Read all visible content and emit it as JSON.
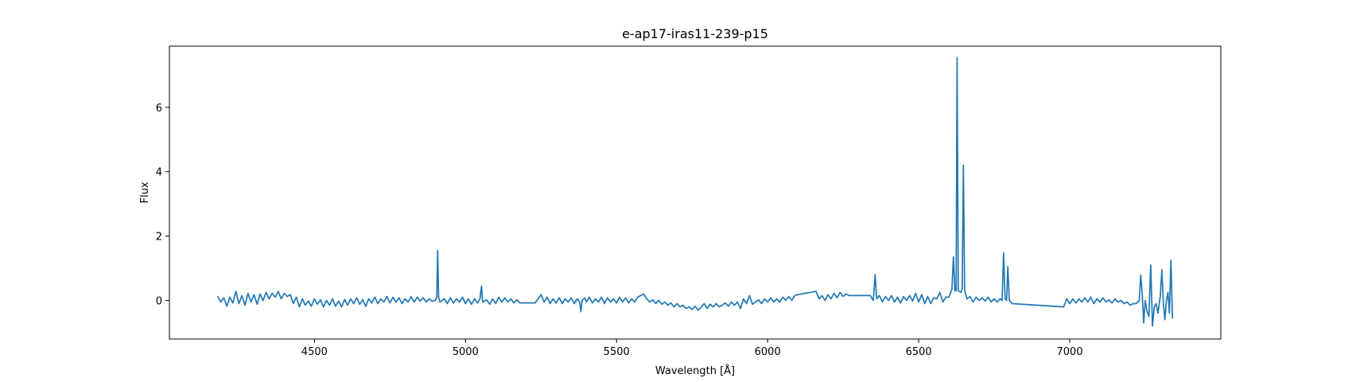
{
  "chart_data": {
    "type": "line",
    "title": "e-ap17-iras11-239-p15",
    "xlabel": "Wavelength [Å]",
    "ylabel": "Flux",
    "xlim": [
      4020,
      7500
    ],
    "ylim": [
      -1.2,
      7.9
    ],
    "xticks": [
      4500,
      5000,
      5500,
      6000,
      6500,
      7000
    ],
    "yticks": [
      0,
      2,
      4,
      6
    ],
    "grid": false,
    "legend": "none",
    "line_color": "#1f77b4",
    "series": [
      {
        "values": [
          [
            4180,
            0.12
          ],
          [
            4190,
            -0.05
          ],
          [
            4200,
            0.08
          ],
          [
            4210,
            -0.18
          ],
          [
            4220,
            0.1
          ],
          [
            4230,
            -0.08
          ],
          [
            4240,
            0.28
          ],
          [
            4250,
            -0.1
          ],
          [
            4260,
            0.15
          ],
          [
            4270,
            -0.15
          ],
          [
            4280,
            0.22
          ],
          [
            4290,
            -0.05
          ],
          [
            4300,
            0.18
          ],
          [
            4310,
            -0.12
          ],
          [
            4320,
            0.2
          ],
          [
            4330,
            0.0
          ],
          [
            4340,
            0.25
          ],
          [
            4350,
            0.05
          ],
          [
            4360,
            0.22
          ],
          [
            4370,
            0.1
          ],
          [
            4380,
            0.28
          ],
          [
            4390,
            0.05
          ],
          [
            4400,
            0.22
          ],
          [
            4410,
            0.12
          ],
          [
            4420,
            0.18
          ],
          [
            4430,
            -0.1
          ],
          [
            4440,
            0.1
          ],
          [
            4450,
            -0.2
          ],
          [
            4460,
            0.05
          ],
          [
            4470,
            -0.15
          ],
          [
            4480,
            -0.02
          ],
          [
            4490,
            -0.18
          ],
          [
            4500,
            0.05
          ],
          [
            4510,
            -0.12
          ],
          [
            4520,
            0.02
          ],
          [
            4530,
            -0.2
          ],
          [
            4540,
            0.0
          ],
          [
            4550,
            -0.15
          ],
          [
            4560,
            0.05
          ],
          [
            4570,
            -0.18
          ],
          [
            4580,
            -0.02
          ],
          [
            4590,
            -0.2
          ],
          [
            4600,
            0.03
          ],
          [
            4610,
            -0.15
          ],
          [
            4620,
            0.05
          ],
          [
            4630,
            -0.1
          ],
          [
            4640,
            0.08
          ],
          [
            4650,
            -0.12
          ],
          [
            4660,
            0.02
          ],
          [
            4670,
            -0.18
          ],
          [
            4680,
            0.05
          ],
          [
            4690,
            -0.08
          ],
          [
            4700,
            0.1
          ],
          [
            4710,
            -0.1
          ],
          [
            4720,
            0.05
          ],
          [
            4730,
            -0.05
          ],
          [
            4740,
            0.12
          ],
          [
            4750,
            -0.08
          ],
          [
            4760,
            0.1
          ],
          [
            4770,
            -0.05
          ],
          [
            4780,
            0.08
          ],
          [
            4790,
            -0.1
          ],
          [
            4800,
            0.05
          ],
          [
            4810,
            -0.05
          ],
          [
            4820,
            0.12
          ],
          [
            4830,
            -0.05
          ],
          [
            4840,
            0.1
          ],
          [
            4850,
            -0.02
          ],
          [
            4860,
            0.08
          ],
          [
            4870,
            -0.05
          ],
          [
            4880,
            0.05
          ],
          [
            4890,
            -0.03
          ],
          [
            4900,
            0.0
          ],
          [
            4905,
            0.1
          ],
          [
            4908,
            1.55
          ],
          [
            4911,
            0.1
          ],
          [
            4915,
            -0.05
          ],
          [
            4930,
            0.05
          ],
          [
            4940,
            -0.1
          ],
          [
            4950,
            0.08
          ],
          [
            4960,
            -0.08
          ],
          [
            4970,
            0.05
          ],
          [
            4980,
            -0.05
          ],
          [
            4990,
            0.1
          ],
          [
            5000,
            -0.1
          ],
          [
            5010,
            0.05
          ],
          [
            5020,
            -0.12
          ],
          [
            5030,
            0.05
          ],
          [
            5040,
            -0.08
          ],
          [
            5048,
            0.05
          ],
          [
            5053,
            0.45
          ],
          [
            5057,
            -0.05
          ],
          [
            5070,
            0.02
          ],
          [
            5080,
            -0.12
          ],
          [
            5090,
            0.05
          ],
          [
            5100,
            -0.1
          ],
          [
            5110,
            0.1
          ],
          [
            5120,
            -0.05
          ],
          [
            5130,
            0.08
          ],
          [
            5140,
            -0.05
          ],
          [
            5150,
            0.05
          ],
          [
            5160,
            -0.08
          ],
          [
            5170,
            0.02
          ],
          [
            5180,
            -0.08
          ],
          [
            5190,
            -0.08
          ],
          [
            5230,
            -0.08
          ],
          [
            5240,
            0.05
          ],
          [
            5250,
            0.18
          ],
          [
            5260,
            -0.05
          ],
          [
            5270,
            0.1
          ],
          [
            5280,
            -0.1
          ],
          [
            5290,
            0.05
          ],
          [
            5300,
            -0.08
          ],
          [
            5310,
            0.08
          ],
          [
            5320,
            -0.1
          ],
          [
            5330,
            0.05
          ],
          [
            5340,
            -0.05
          ],
          [
            5350,
            0.08
          ],
          [
            5360,
            -0.1
          ],
          [
            5370,
            0.05
          ],
          [
            5378,
            -0.05
          ],
          [
            5382,
            -0.35
          ],
          [
            5386,
            0.0
          ],
          [
            5395,
            0.08
          ],
          [
            5400,
            -0.05
          ],
          [
            5410,
            0.1
          ],
          [
            5420,
            -0.08
          ],
          [
            5430,
            0.05
          ],
          [
            5440,
            -0.05
          ],
          [
            5450,
            0.1
          ],
          [
            5460,
            -0.1
          ],
          [
            5470,
            0.08
          ],
          [
            5480,
            -0.05
          ],
          [
            5490,
            0.05
          ],
          [
            5500,
            -0.08
          ],
          [
            5510,
            0.1
          ],
          [
            5520,
            -0.05
          ],
          [
            5530,
            0.08
          ],
          [
            5540,
            -0.08
          ],
          [
            5550,
            0.05
          ],
          [
            5560,
            -0.05
          ],
          [
            5570,
            0.1
          ],
          [
            5580,
            0.15
          ],
          [
            5590,
            0.2
          ],
          [
            5600,
            0.05
          ],
          [
            5610,
            -0.05
          ],
          [
            5620,
            0.02
          ],
          [
            5630,
            -0.1
          ],
          [
            5640,
            0.0
          ],
          [
            5650,
            -0.12
          ],
          [
            5660,
            -0.05
          ],
          [
            5670,
            -0.15
          ],
          [
            5680,
            -0.08
          ],
          [
            5690,
            -0.2
          ],
          [
            5700,
            -0.1
          ],
          [
            5710,
            -0.2
          ],
          [
            5720,
            -0.15
          ],
          [
            5730,
            -0.25
          ],
          [
            5740,
            -0.2
          ],
          [
            5750,
            -0.28
          ],
          [
            5760,
            -0.18
          ],
          [
            5770,
            -0.3
          ],
          [
            5780,
            -0.22
          ],
          [
            5790,
            -0.1
          ],
          [
            5800,
            -0.25
          ],
          [
            5810,
            -0.12
          ],
          [
            5820,
            -0.2
          ],
          [
            5830,
            -0.1
          ],
          [
            5840,
            -0.2
          ],
          [
            5850,
            -0.15
          ],
          [
            5860,
            -0.08
          ],
          [
            5870,
            -0.18
          ],
          [
            5880,
            -0.05
          ],
          [
            5890,
            -0.15
          ],
          [
            5900,
            -0.05
          ],
          [
            5910,
            -0.25
          ],
          [
            5920,
            0.05
          ],
          [
            5930,
            -0.1
          ],
          [
            5940,
            0.15
          ],
          [
            5950,
            -0.12
          ],
          [
            5960,
            -0.05
          ],
          [
            5970,
            0.02
          ],
          [
            5980,
            -0.1
          ],
          [
            5990,
            0.05
          ],
          [
            6000,
            -0.05
          ],
          [
            6010,
            0.08
          ],
          [
            6020,
            -0.05
          ],
          [
            6030,
            0.05
          ],
          [
            6040,
            -0.05
          ],
          [
            6050,
            0.1
          ],
          [
            6060,
            0.0
          ],
          [
            6070,
            0.12
          ],
          [
            6080,
            0.0
          ],
          [
            6090,
            0.15
          ],
          [
            6100,
            0.18
          ],
          [
            6160,
            0.28
          ],
          [
            6170,
            0.05
          ],
          [
            6180,
            0.15
          ],
          [
            6190,
            0.0
          ],
          [
            6200,
            0.18
          ],
          [
            6210,
            0.05
          ],
          [
            6220,
            0.22
          ],
          [
            6230,
            0.08
          ],
          [
            6240,
            0.25
          ],
          [
            6250,
            0.12
          ],
          [
            6260,
            0.2
          ],
          [
            6270,
            0.15
          ],
          [
            6340,
            0.15
          ],
          [
            6350,
            0.0
          ],
          [
            6356,
            0.8
          ],
          [
            6361,
            0.05
          ],
          [
            6370,
            0.15
          ],
          [
            6380,
            -0.05
          ],
          [
            6390,
            0.12
          ],
          [
            6400,
            0.0
          ],
          [
            6410,
            0.15
          ],
          [
            6420,
            -0.05
          ],
          [
            6430,
            0.1
          ],
          [
            6440,
            -0.08
          ],
          [
            6450,
            0.12
          ],
          [
            6460,
            0.0
          ],
          [
            6470,
            0.15
          ],
          [
            6480,
            -0.02
          ],
          [
            6490,
            0.22
          ],
          [
            6500,
            -0.05
          ],
          [
            6510,
            0.18
          ],
          [
            6520,
            -0.1
          ],
          [
            6530,
            0.12
          ],
          [
            6540,
            -0.1
          ],
          [
            6550,
            0.08
          ],
          [
            6560,
            0.05
          ],
          [
            6570,
            0.25
          ],
          [
            6580,
            -0.05
          ],
          [
            6590,
            0.1
          ],
          [
            6600,
            0.1
          ],
          [
            6610,
            0.35
          ],
          [
            6615,
            1.35
          ],
          [
            6620,
            0.3
          ],
          [
            6624,
            0.3
          ],
          [
            6627,
            7.55
          ],
          [
            6631,
            0.3
          ],
          [
            6640,
            0.25
          ],
          [
            6644,
            0.35
          ],
          [
            6648,
            4.2
          ],
          [
            6652,
            0.3
          ],
          [
            6660,
            0.05
          ],
          [
            6670,
            0.12
          ],
          [
            6680,
            -0.05
          ],
          [
            6690,
            0.1
          ],
          [
            6700,
            0.0
          ],
          [
            6710,
            0.08
          ],
          [
            6720,
            -0.02
          ],
          [
            6730,
            0.1
          ],
          [
            6740,
            -0.05
          ],
          [
            6750,
            0.05
          ],
          [
            6760,
            -0.05
          ],
          [
            6770,
            0.05
          ],
          [
            6776,
            0.0
          ],
          [
            6781,
            1.48
          ],
          [
            6786,
            0.05
          ],
          [
            6791,
            0.0
          ],
          [
            6795,
            1.05
          ],
          [
            6800,
            0.0
          ],
          [
            6810,
            -0.1
          ],
          [
            6980,
            -0.2
          ],
          [
            6990,
            0.05
          ],
          [
            7000,
            -0.1
          ],
          [
            7010,
            0.05
          ],
          [
            7020,
            -0.08
          ],
          [
            7030,
            0.05
          ],
          [
            7040,
            -0.05
          ],
          [
            7050,
            0.08
          ],
          [
            7060,
            -0.05
          ],
          [
            7070,
            0.1
          ],
          [
            7080,
            -0.1
          ],
          [
            7090,
            0.05
          ],
          [
            7100,
            -0.05
          ],
          [
            7110,
            0.08
          ],
          [
            7120,
            -0.05
          ],
          [
            7130,
            0.02
          ],
          [
            7140,
            -0.08
          ],
          [
            7150,
            0.05
          ],
          [
            7160,
            -0.05
          ],
          [
            7170,
            0.0
          ],
          [
            7180,
            -0.1
          ],
          [
            7190,
            -0.05
          ],
          [
            7200,
            -0.15
          ],
          [
            7210,
            -0.1
          ],
          [
            7220,
            -0.1
          ],
          [
            7230,
            0.0
          ],
          [
            7235,
            0.78
          ],
          [
            7240,
            0.2
          ],
          [
            7245,
            -0.7
          ],
          [
            7250,
            0.0
          ],
          [
            7255,
            -0.3
          ],
          [
            7262,
            -0.5
          ],
          [
            7268,
            1.1
          ],
          [
            7274,
            -0.8
          ],
          [
            7280,
            -0.2
          ],
          [
            7286,
            -0.1
          ],
          [
            7292,
            -0.4
          ],
          [
            7300,
            0.15
          ],
          [
            7305,
            0.95
          ],
          [
            7310,
            -0.1
          ],
          [
            7315,
            -0.6
          ],
          [
            7320,
            0.0
          ],
          [
            7325,
            0.25
          ],
          [
            7330,
            -0.4
          ],
          [
            7335,
            1.25
          ],
          [
            7340,
            -0.55
          ]
        ]
      }
    ]
  }
}
